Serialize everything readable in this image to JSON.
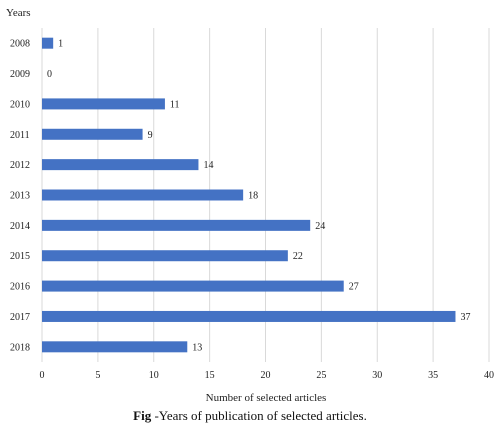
{
  "chart_data": {
    "type": "bar",
    "orientation": "horizontal",
    "categories": [
      "2008",
      "2009",
      "2010",
      "2011",
      "2012",
      "2013",
      "2014",
      "2015",
      "2016",
      "2017",
      "2018"
    ],
    "values": [
      1,
      0,
      11,
      9,
      14,
      18,
      24,
      22,
      27,
      37,
      13
    ],
    "data_labels": [
      "1",
      "0",
      "11",
      "9",
      "14",
      "18",
      "24",
      "22",
      "27",
      "37",
      "13"
    ],
    "xlabel": "Number of selected articles",
    "ylabel": "Years",
    "xlim": [
      0,
      40
    ],
    "xticks": [
      0,
      5,
      10,
      15,
      20,
      25,
      30,
      35,
      40
    ],
    "grid": "vertical",
    "legend": "none",
    "bar_color": "#4472C4",
    "grid_color": "#d9d9d9"
  },
  "caption": {
    "prefix": "Fig",
    "text": " -Years of publication of selected articles."
  }
}
